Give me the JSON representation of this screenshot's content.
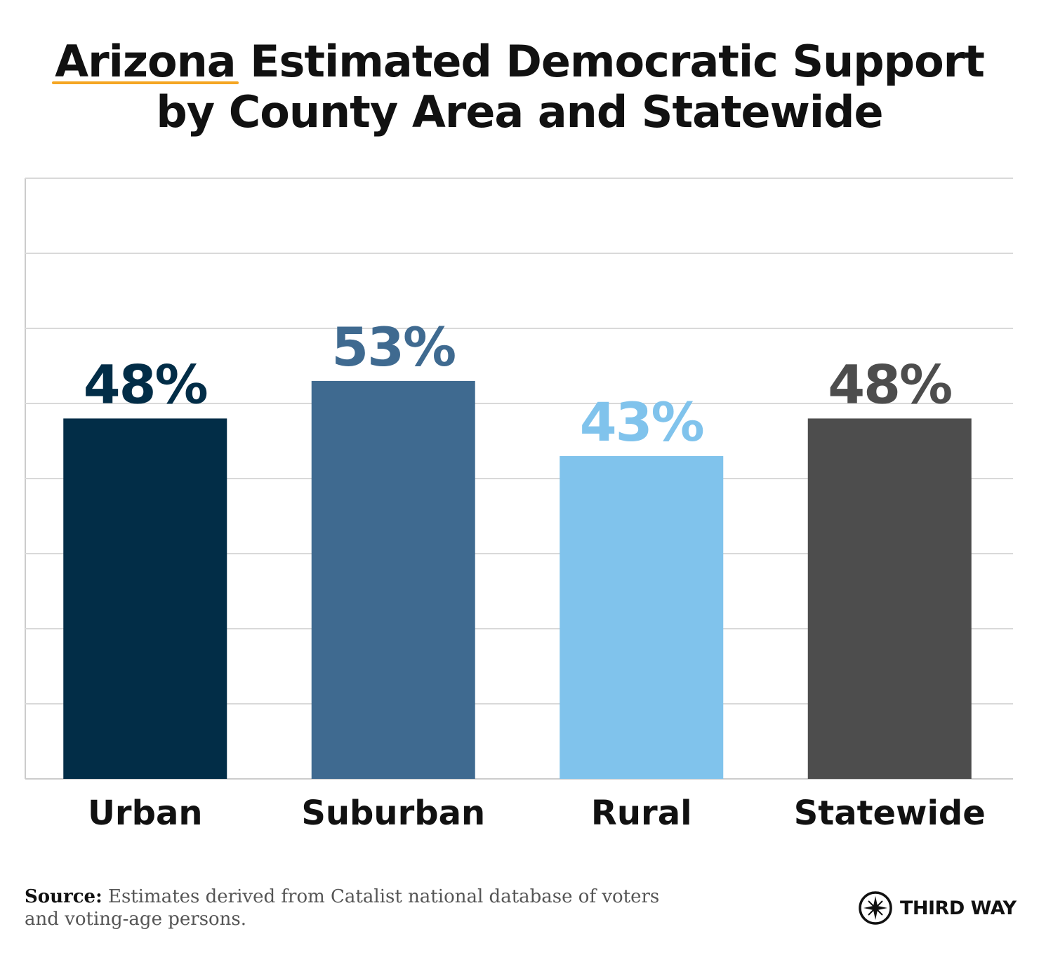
{
  "title_line1_highlight": "Arizona",
  "title_line1_rest": " Estimated Democratic Support",
  "title_line2": "by County Area and Statewide",
  "chart_data": {
    "type": "bar",
    "title": "Arizona Estimated Democratic Support by County Area and Statewide",
    "categories": [
      "Urban",
      "Suburban",
      "Rural",
      "Statewide"
    ],
    "values": [
      48,
      53,
      43,
      48
    ],
    "value_labels": [
      "48%",
      "53%",
      "43%",
      "48%"
    ],
    "colors": [
      "#022d47",
      "#3f6a90",
      "#80c3ec",
      "#4d4d4d"
    ],
    "xlabel": "",
    "ylabel": "",
    "ylim": [
      0,
      80
    ],
    "gridlines": [
      10,
      20,
      30,
      40,
      50,
      60,
      70,
      80
    ],
    "grid": true,
    "legend": "none"
  },
  "source": {
    "label": "Source:",
    "text": " Estimates derived from Catalist national database of voters and voting-age persons."
  },
  "brand": {
    "name": "THIRD WAY",
    "icon": "compass-star-icon"
  },
  "colors": {
    "highlight_underline": "#f5a623",
    "grid": "#d9d9d9",
    "axis": "#cccccc"
  }
}
